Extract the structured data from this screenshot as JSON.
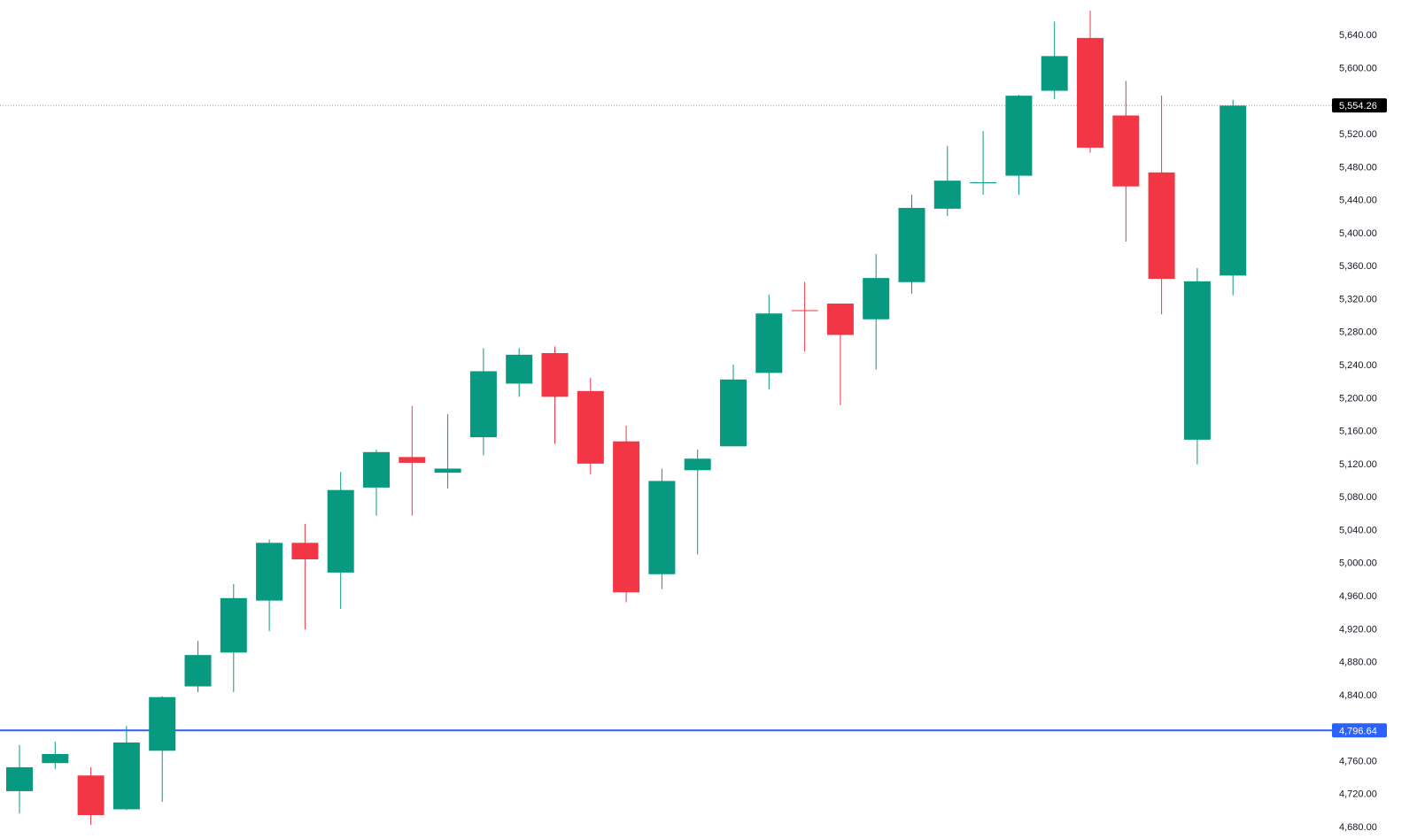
{
  "colors": {
    "up": "#089981",
    "down": "#f23645",
    "price_tag_bg": "#000000",
    "hline": "#2962ff",
    "axis_text": "#131722",
    "background": "#ffffff"
  },
  "chart_data": {
    "type": "candlestick",
    "title": "",
    "xlabel": "",
    "ylabel": "",
    "ylim": [
      4665,
      5682
    ],
    "y_ticks": [
      "4,680.00",
      "4,720.00",
      "4,760.00",
      "4,840.00",
      "4,880.00",
      "4,920.00",
      "4,960.00",
      "5,000.00",
      "5,040.00",
      "5,080.00",
      "5,120.00",
      "5,160.00",
      "5,200.00",
      "5,240.00",
      "5,280.00",
      "5,320.00",
      "5,360.00",
      "5,400.00",
      "5,440.00",
      "5,480.00",
      "5,520.00",
      "5,600.00",
      "5,640.00"
    ],
    "y_tick_values": [
      4680,
      4720,
      4760,
      4840,
      4880,
      4920,
      4960,
      5000,
      5040,
      5080,
      5120,
      5160,
      5200,
      5240,
      5280,
      5320,
      5360,
      5400,
      5440,
      5480,
      5520,
      5600,
      5640
    ],
    "grid": false,
    "candles": [
      {
        "o": 4723,
        "h": 4779,
        "l": 4696,
        "c": 4752
      },
      {
        "o": 4757,
        "h": 4783,
        "l": 4750,
        "c": 4768
      },
      {
        "o": 4742,
        "h": 4752,
        "l": 4682,
        "c": 4694
      },
      {
        "o": 4701,
        "h": 4802,
        "l": 4700,
        "c": 4782
      },
      {
        "o": 4772,
        "h": 4838,
        "l": 4710,
        "c": 4837
      },
      {
        "o": 4850,
        "h": 4905,
        "l": 4843,
        "c": 4888
      },
      {
        "o": 4891,
        "h": 4974,
        "l": 4843,
        "c": 4957
      },
      {
        "o": 4954,
        "h": 5028,
        "l": 4917,
        "c": 5024
      },
      {
        "o": 5024,
        "h": 5047,
        "l": 4919,
        "c": 5004
      },
      {
        "o": 4988,
        "h": 5110,
        "l": 4944,
        "c": 5088
      },
      {
        "o": 5091,
        "h": 5137,
        "l": 5057,
        "c": 5134
      },
      {
        "o": 5128,
        "h": 5190,
        "l": 5057,
        "c": 5121
      },
      {
        "o": 5109,
        "h": 5180,
        "l": 5090,
        "c": 5114
      },
      {
        "o": 5152,
        "h": 5260,
        "l": 5130,
        "c": 5232
      },
      {
        "o": 5217,
        "h": 5260,
        "l": 5201,
        "c": 5252
      },
      {
        "o": 5254,
        "h": 5262,
        "l": 5144,
        "c": 5201
      },
      {
        "o": 5208,
        "h": 5224,
        "l": 5107,
        "c": 5120
      },
      {
        "o": 5147,
        "h": 5166,
        "l": 4952,
        "c": 4964
      },
      {
        "o": 4986,
        "h": 5114,
        "l": 4968,
        "c": 5099
      },
      {
        "o": 5112,
        "h": 5137,
        "l": 5010,
        "c": 5126
      },
      {
        "o": 5141,
        "h": 5240,
        "l": 5141,
        "c": 5222
      },
      {
        "o": 5230,
        "h": 5325,
        "l": 5210,
        "c": 5302
      },
      {
        "o": 5306,
        "h": 5340,
        "l": 5256,
        "c": 5305
      },
      {
        "o": 5314,
        "h": 5314,
        "l": 5191,
        "c": 5276
      },
      {
        "o": 5295,
        "h": 5374,
        "l": 5234,
        "c": 5345
      },
      {
        "o": 5340,
        "h": 5446,
        "l": 5326,
        "c": 5430
      },
      {
        "o": 5429,
        "h": 5505,
        "l": 5420,
        "c": 5463
      },
      {
        "o": 5460,
        "h": 5523,
        "l": 5446,
        "c": 5461
      },
      {
        "o": 5469,
        "h": 5567,
        "l": 5446,
        "c": 5566
      },
      {
        "o": 5572,
        "h": 5656,
        "l": 5562,
        "c": 5614
      },
      {
        "o": 5636,
        "h": 5669,
        "l": 5497,
        "c": 5503
      },
      {
        "o": 5542,
        "h": 5584,
        "l": 5389,
        "c": 5456
      },
      {
        "o": 5473,
        "h": 5566,
        "l": 5301,
        "c": 5344
      },
      {
        "o": 5149,
        "h": 5357,
        "l": 5119,
        "c": 5341
      },
      {
        "o": 5348,
        "h": 5561,
        "l": 5324,
        "c": 5554
      }
    ],
    "last_price": 5554.26,
    "last_price_label": "5,554.26",
    "horizontal_line": {
      "value": 4796.64,
      "label": "4,796.64"
    }
  }
}
